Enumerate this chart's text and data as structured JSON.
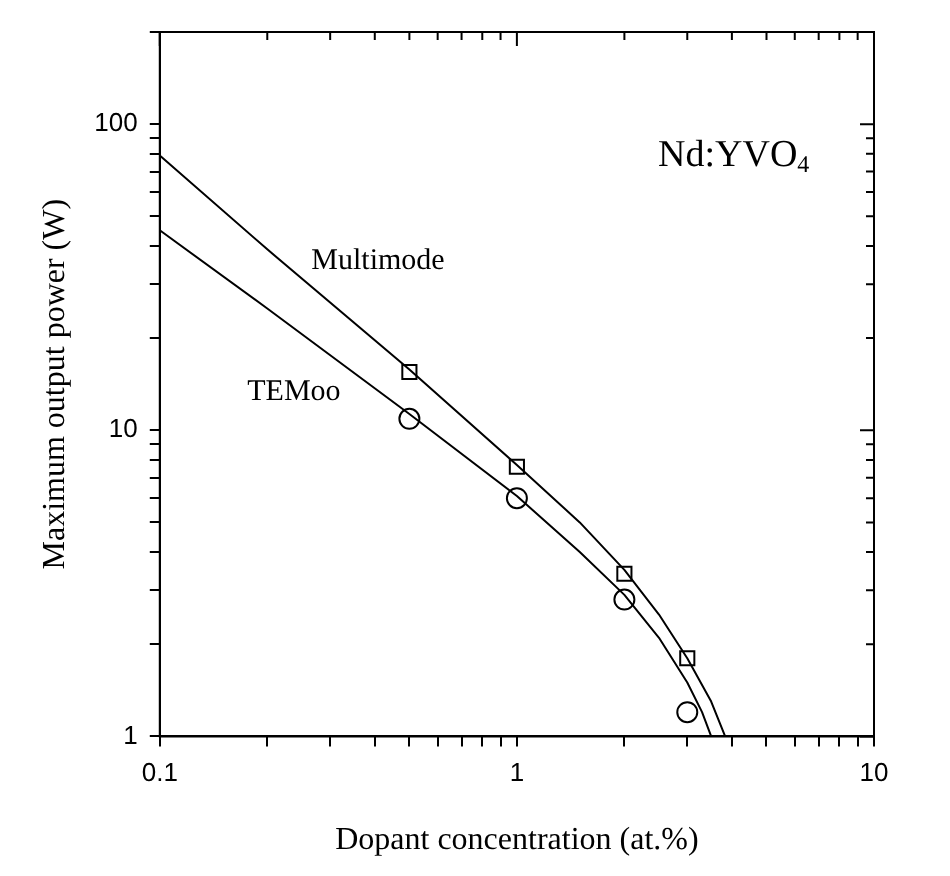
{
  "chart_data": {
    "type": "line",
    "xlabel": "Dopant concentration (at.%)",
    "ylabel": "Maximum output power (W)",
    "annotations": [
      "Nd:YVO$_{4}$"
    ],
    "log": "xy",
    "grid": false,
    "legend": false,
    "xlim": [
      0.1,
      10
    ],
    "ylim": [
      1,
      200
    ],
    "xticks": [
      0.1,
      {
        "value": 0.2,
        "label": null
      },
      {
        "value": 0.3,
        "label": null
      },
      {
        "value": 0.4,
        "label": null
      },
      {
        "value": 0.5,
        "label": null
      },
      {
        "value": 0.6,
        "label": null
      },
      {
        "value": 0.7,
        "label": null
      },
      {
        "value": 0.8,
        "label": null
      },
      {
        "value": 0.9,
        "label": null
      },
      1,
      {
        "value": 2,
        "label": null
      },
      {
        "value": 3,
        "label": null
      },
      {
        "value": 4,
        "label": null
      },
      {
        "value": 5,
        "label": null
      },
      {
        "value": 6,
        "label": null
      },
      {
        "value": 7,
        "label": null
      },
      {
        "value": 8,
        "label": null
      },
      {
        "value": 9,
        "label": null
      },
      10
    ],
    "yticks": [
      1,
      {
        "value": 2,
        "label": null
      },
      {
        "value": 3,
        "label": null
      },
      {
        "value": 4,
        "label": null
      },
      {
        "value": 5,
        "label": null
      },
      {
        "value": 6,
        "label": null
      },
      {
        "value": 7,
        "label": null
      },
      {
        "value": 8,
        "label": null
      },
      {
        "value": 9,
        "label": null
      },
      10,
      {
        "value": 20,
        "label": null
      },
      {
        "value": 30,
        "label": null
      },
      {
        "value": 40,
        "label": null
      },
      {
        "value": 50,
        "label": null
      },
      {
        "value": 60,
        "label": null
      },
      {
        "value": 70,
        "label": null
      },
      {
        "value": 80,
        "label": null
      },
      {
        "value": 90,
        "label": null
      },
      100,
      {
        "value": 200,
        "label": null
      }
    ],
    "series": [
      {
        "name": "Multimode",
        "type": "line",
        "color": "#000000",
        "marker": "none",
        "x": [
          0.1,
          0.2,
          0.5,
          1,
          1.5,
          2,
          2.5,
          3,
          3.5,
          3.83
        ],
        "values": [
          79,
          39,
          15.8,
          7.7,
          5.0,
          3.5,
          2.5,
          1.8,
          1.3,
          1
        ]
      },
      {
        "name": "TEMoo",
        "type": "line",
        "color": "#000000",
        "marker": "none",
        "x": [
          0.1,
          0.2,
          0.5,
          1,
          1.5,
          2,
          2.5,
          3,
          3.3,
          3.5
        ],
        "values": [
          45,
          25,
          11.3,
          6.1,
          4.0,
          2.9,
          2.1,
          1.5,
          1.2,
          1
        ]
      },
      {
        "type": "scatter",
        "color": "#000000",
        "marker": "square",
        "x": [
          0.5,
          1,
          2,
          3
        ],
        "values": [
          15.5,
          7.6,
          3.4,
          1.8
        ]
      },
      {
        "type": "scatter",
        "color": "#000000",
        "marker": "circle",
        "x": [
          0.5,
          1,
          2,
          3
        ],
        "values": [
          10.9,
          6.0,
          2.8,
          1.2
        ]
      }
    ]
  }
}
